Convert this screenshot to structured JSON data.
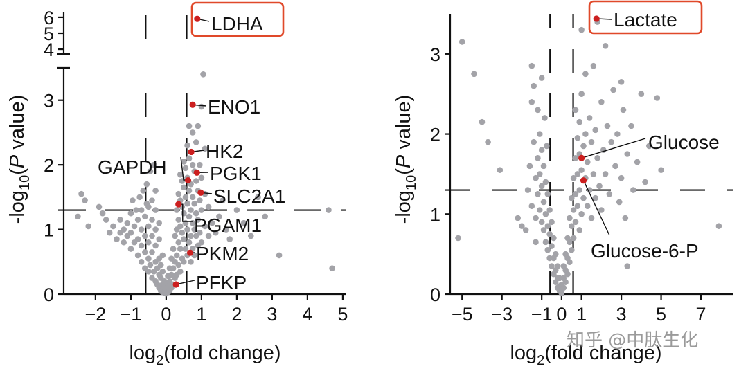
{
  "figure": {
    "watermark": "知乎 @中肽生化"
  },
  "chart_data": [
    {
      "type": "scatter",
      "panel": "left",
      "title": "",
      "xlabel": {
        "prefix": "log",
        "sub": "2",
        "suffix": "(fold change)"
      },
      "ylabel": {
        "prefix": "-log",
        "sub": "10",
        "mid": "(",
        "italic": "P",
        "suffix": " value)"
      },
      "xlim": [
        -2.9,
        5.1
      ],
      "ylim_lower": [
        0,
        3.5
      ],
      "ylim_upper": [
        3.7,
        6.3
      ],
      "axis_break": true,
      "xticks": [
        -2,
        -1,
        0,
        1,
        2,
        3,
        4,
        5
      ],
      "xtick_labels": [
        "−2",
        "−1",
        "0",
        "1",
        "2",
        "3",
        "4",
        "5"
      ],
      "yticks_lower": [
        0,
        1,
        2,
        3
      ],
      "yticks_upper": [
        4,
        5,
        6
      ],
      "ytick_labels_lower": [
        "0",
        "1",
        "2",
        "3"
      ],
      "ytick_labels_upper": [
        "4",
        "5",
        "6"
      ],
      "thresholds": {
        "fold_change": [
          -0.58,
          0.58
        ],
        "p_value": 1.3
      },
      "point_colors": {
        "background": "#a3a3a8",
        "highlight": "#cc1f1f",
        "box": "#e0492a"
      },
      "background_points": [
        [
          -2.5,
          1.2
        ],
        [
          -2.4,
          1.55
        ],
        [
          -2.3,
          1.45
        ],
        [
          -2.2,
          1.05
        ],
        [
          -1.9,
          1.35
        ],
        [
          -1.8,
          1.25
        ],
        [
          -1.7,
          1.15
        ],
        [
          -1.6,
          0.95
        ],
        [
          -1.5,
          1.05
        ],
        [
          -1.4,
          0.85
        ],
        [
          -1.3,
          0.95
        ],
        [
          -1.3,
          1.15
        ],
        [
          -1.2,
          0.8
        ],
        [
          -1.2,
          1.0
        ],
        [
          -1.1,
          0.9
        ],
        [
          -1.1,
          1.1
        ],
        [
          -1.0,
          0.7
        ],
        [
          -1.0,
          0.95
        ],
        [
          -1.0,
          1.25
        ],
        [
          -0.95,
          1.45
        ],
        [
          -0.9,
          0.8
        ],
        [
          -0.9,
          1.05
        ],
        [
          -0.85,
          1.3
        ],
        [
          -0.8,
          0.6
        ],
        [
          -0.8,
          0.85
        ],
        [
          -0.8,
          1.15
        ],
        [
          -0.75,
          1.5
        ],
        [
          -0.7,
          0.5
        ],
        [
          -0.7,
          0.75
        ],
        [
          -0.7,
          1.0
        ],
        [
          -0.7,
          1.3
        ],
        [
          -0.65,
          1.6
        ],
        [
          -0.6,
          0.4
        ],
        [
          -0.6,
          0.65
        ],
        [
          -0.6,
          0.9
        ],
        [
          -0.6,
          1.2
        ],
        [
          -0.55,
          1.4
        ],
        [
          -0.55,
          1.7
        ],
        [
          -0.5,
          0.35
        ],
        [
          -0.5,
          0.55
        ],
        [
          -0.5,
          0.8
        ],
        [
          -0.5,
          1.05
        ],
        [
          -0.5,
          1.35
        ],
        [
          -0.45,
          1.9
        ],
        [
          -0.45,
          0.45
        ],
        [
          -0.4,
          0.25
        ],
        [
          -0.4,
          0.65
        ],
        [
          -0.4,
          0.9
        ],
        [
          -0.4,
          1.15
        ],
        [
          -0.4,
          1.45
        ],
        [
          -0.35,
          2.0
        ],
        [
          -0.35,
          0.35
        ],
        [
          -0.3,
          0.2
        ],
        [
          -0.3,
          0.5
        ],
        [
          -0.3,
          0.75
        ],
        [
          -0.3,
          1.0
        ],
        [
          -0.3,
          1.3
        ],
        [
          -0.3,
          1.6
        ],
        [
          -0.25,
          0.15
        ],
        [
          -0.25,
          0.4
        ],
        [
          -0.2,
          0.1
        ],
        [
          -0.2,
          0.3
        ],
        [
          -0.2,
          0.55
        ],
        [
          -0.2,
          0.85
        ],
        [
          -0.2,
          1.1
        ],
        [
          -0.15,
          0.05
        ],
        [
          -0.15,
          0.25
        ],
        [
          -0.15,
          0.45
        ],
        [
          -0.1,
          0.03
        ],
        [
          -0.1,
          0.15
        ],
        [
          -0.1,
          0.35
        ],
        [
          -0.1,
          0.6
        ],
        [
          -0.05,
          0.02
        ],
        [
          -0.05,
          0.1
        ],
        [
          -0.05,
          0.2
        ],
        [
          0.0,
          0.01
        ],
        [
          0.0,
          0.08
        ],
        [
          0.0,
          0.18
        ],
        [
          0.05,
          0.03
        ],
        [
          0.05,
          0.12
        ],
        [
          0.05,
          0.28
        ],
        [
          0.1,
          0.05
        ],
        [
          0.1,
          0.2
        ],
        [
          0.1,
          0.4
        ],
        [
          0.15,
          0.1
        ],
        [
          0.15,
          0.3
        ],
        [
          0.15,
          0.55
        ],
        [
          0.2,
          0.15
        ],
        [
          0.2,
          0.4
        ],
        [
          0.2,
          0.7
        ],
        [
          0.25,
          0.25
        ],
        [
          0.25,
          0.5
        ],
        [
          0.25,
          0.9
        ],
        [
          0.3,
          0.3
        ],
        [
          0.3,
          0.6
        ],
        [
          0.3,
          1.0
        ],
        [
          0.3,
          1.3
        ],
        [
          0.35,
          0.45
        ],
        [
          0.35,
          0.8
        ],
        [
          0.35,
          1.15
        ],
        [
          0.35,
          1.55
        ],
        [
          0.4,
          0.35
        ],
        [
          0.4,
          0.7
        ],
        [
          0.4,
          1.05
        ],
        [
          0.4,
          1.45
        ],
        [
          0.4,
          1.85
        ],
        [
          0.45,
          0.55
        ],
        [
          0.45,
          0.95
        ],
        [
          0.45,
          1.35
        ],
        [
          0.45,
          1.75
        ],
        [
          0.5,
          0.5
        ],
        [
          0.5,
          0.85
        ],
        [
          0.5,
          1.25
        ],
        [
          0.5,
          1.65
        ],
        [
          0.5,
          2.05
        ],
        [
          0.55,
          0.7
        ],
        [
          0.55,
          1.1
        ],
        [
          0.55,
          1.5
        ],
        [
          0.55,
          1.95
        ],
        [
          0.6,
          0.6
        ],
        [
          0.6,
          1.0
        ],
        [
          0.6,
          1.4
        ],
        [
          0.6,
          1.8
        ],
        [
          0.6,
          2.3
        ],
        [
          0.65,
          0.8
        ],
        [
          0.65,
          1.2
        ],
        [
          0.65,
          1.6
        ],
        [
          0.65,
          2.1
        ],
        [
          0.65,
          2.6
        ],
        [
          0.7,
          0.5
        ],
        [
          0.7,
          0.9
        ],
        [
          0.7,
          1.3
        ],
        [
          0.7,
          1.7
        ],
        [
          0.7,
          2.2
        ],
        [
          0.75,
          0.7
        ],
        [
          0.75,
          1.1
        ],
        [
          0.75,
          1.5
        ],
        [
          0.75,
          2.0
        ],
        [
          0.75,
          2.5
        ],
        [
          0.8,
          0.6
        ],
        [
          0.8,
          1.0
        ],
        [
          0.8,
          1.4
        ],
        [
          0.8,
          1.9
        ],
        [
          0.85,
          0.9
        ],
        [
          0.85,
          1.25
        ],
        [
          0.85,
          1.75
        ],
        [
          0.85,
          2.35
        ],
        [
          0.9,
          0.75
        ],
        [
          0.9,
          1.15
        ],
        [
          0.9,
          1.6
        ],
        [
          0.9,
          2.6
        ],
        [
          0.95,
          0.95
        ],
        [
          0.95,
          1.45
        ],
        [
          0.95,
          2.0
        ],
        [
          1.0,
          0.8
        ],
        [
          1.0,
          1.3
        ],
        [
          1.0,
          1.8
        ],
        [
          1.0,
          2.9
        ],
        [
          1.05,
          3.4
        ],
        [
          1.1,
          1.05
        ],
        [
          1.1,
          1.55
        ],
        [
          1.1,
          2.25
        ],
        [
          1.2,
          0.9
        ],
        [
          1.2,
          1.35
        ],
        [
          1.3,
          1.1
        ],
        [
          1.4,
          0.95
        ],
        [
          1.5,
          1.2
        ],
        [
          1.6,
          1.45
        ],
        [
          1.7,
          1.0
        ],
        [
          1.8,
          0.85
        ],
        [
          2.0,
          1.3
        ],
        [
          2.2,
          1.1
        ],
        [
          2.4,
          0.9
        ],
        [
          2.6,
          1.5
        ],
        [
          2.8,
          1.2
        ],
        [
          3.2,
          0.6
        ],
        [
          4.6,
          1.3
        ],
        [
          4.7,
          0.4
        ]
      ],
      "highlights": [
        {
          "gene": "LDHA",
          "x": 0.88,
          "y": 5.9,
          "boxed": true
        },
        {
          "gene": "ENO1",
          "x": 0.75,
          "y": 2.93
        },
        {
          "gene": "HK2",
          "x": 0.71,
          "y": 2.2
        },
        {
          "gene": "GAPDH",
          "x": 0.62,
          "y": 1.76
        },
        {
          "gene": "PGK1",
          "x": 0.87,
          "y": 1.88
        },
        {
          "gene": "SLC2A1",
          "x": 0.98,
          "y": 1.57
        },
        {
          "gene": "PGAM1",
          "x": 0.35,
          "y": 1.39
        },
        {
          "gene": "PKM2",
          "x": 0.68,
          "y": 0.64
        },
        {
          "gene": "PFKP",
          "x": 0.28,
          "y": 0.15
        }
      ]
    },
    {
      "type": "scatter",
      "panel": "right",
      "title": "",
      "xlabel": {
        "prefix": "log",
        "sub": "2",
        "suffix": "(fold change)"
      },
      "ylabel": {
        "prefix": "-log",
        "sub": "10",
        "mid": "(",
        "italic": "P",
        "suffix": " value)"
      },
      "xlim": [
        -5.6,
        8.6
      ],
      "ylim": [
        0,
        3.5
      ],
      "axis_break": false,
      "xticks": [
        -5,
        -3,
        -1,
        0,
        1,
        3,
        5,
        7
      ],
      "xtick_labels": [
        "−5",
        "−3",
        "−1",
        "0",
        "1",
        "3",
        "5",
        "7"
      ],
      "yticks": [
        0,
        1,
        2,
        3
      ],
      "ytick_labels": [
        "0",
        "1",
        "2",
        "3"
      ],
      "thresholds": {
        "fold_change": [
          -0.58,
          0.58
        ],
        "p_value": 1.3
      },
      "point_colors": {
        "background": "#a3a3a8",
        "highlight": "#cc1f1f",
        "box": "#e0492a"
      },
      "background_points": [
        [
          -5.0,
          3.15
        ],
        [
          -4.4,
          2.75
        ],
        [
          -4.0,
          2.15
        ],
        [
          -3.7,
          1.9
        ],
        [
          -3.1,
          1.55
        ],
        [
          -5.2,
          0.7
        ],
        [
          -2.2,
          0.95
        ],
        [
          -2.0,
          0.85
        ],
        [
          -1.8,
          0.8
        ],
        [
          -1.7,
          1.3
        ],
        [
          -1.6,
          1.6
        ],
        [
          -1.5,
          2.85
        ],
        [
          -1.5,
          2.4
        ],
        [
          -1.5,
          1.1
        ],
        [
          -1.4,
          2.6
        ],
        [
          -1.4,
          1.9
        ],
        [
          -1.3,
          1.45
        ],
        [
          -1.3,
          0.95
        ],
        [
          -1.3,
          0.65
        ],
        [
          -1.2,
          2.3
        ],
        [
          -1.2,
          1.7
        ],
        [
          -1.2,
          1.25
        ],
        [
          -1.1,
          2.0
        ],
        [
          -1.1,
          1.5
        ],
        [
          -1.1,
          1.05
        ],
        [
          -1.0,
          2.7
        ],
        [
          -1.0,
          1.8
        ],
        [
          -1.0,
          1.35
        ],
        [
          -1.0,
          0.9
        ],
        [
          -0.9,
          1.6
        ],
        [
          -0.9,
          1.15
        ],
        [
          -0.9,
          0.8
        ],
        [
          -0.85,
          2.2
        ],
        [
          -0.8,
          1.4
        ],
        [
          -0.8,
          1.0
        ],
        [
          -0.8,
          0.65
        ],
        [
          -0.75,
          1.85
        ],
        [
          -0.7,
          1.25
        ],
        [
          -0.7,
          0.85
        ],
        [
          -0.7,
          0.55
        ],
        [
          -0.6,
          1.05
        ],
        [
          -0.6,
          0.75
        ],
        [
          -0.6,
          0.45
        ],
        [
          -0.5,
          0.9
        ],
        [
          -0.5,
          0.6
        ],
        [
          -0.5,
          0.35
        ],
        [
          -0.4,
          0.7
        ],
        [
          -0.4,
          0.45
        ],
        [
          -0.4,
          0.25
        ],
        [
          -0.3,
          0.5
        ],
        [
          -0.3,
          0.3
        ],
        [
          -0.3,
          0.15
        ],
        [
          -0.2,
          0.35
        ],
        [
          -0.2,
          0.2
        ],
        [
          -0.2,
          0.08
        ],
        [
          -0.1,
          0.2
        ],
        [
          -0.1,
          0.1
        ],
        [
          -0.1,
          0.04
        ],
        [
          0.0,
          0.12
        ],
        [
          0.0,
          0.05
        ],
        [
          0.0,
          0.01
        ],
        [
          0.1,
          0.08
        ],
        [
          0.1,
          0.2
        ],
        [
          0.1,
          0.35
        ],
        [
          0.2,
          0.15
        ],
        [
          0.2,
          0.3
        ],
        [
          0.2,
          0.5
        ],
        [
          0.3,
          0.25
        ],
        [
          0.3,
          0.45
        ],
        [
          0.3,
          0.7
        ],
        [
          0.4,
          0.4
        ],
        [
          0.4,
          0.65
        ],
        [
          0.4,
          0.95
        ],
        [
          0.5,
          0.55
        ],
        [
          0.5,
          0.85
        ],
        [
          0.5,
          1.2
        ],
        [
          0.6,
          0.7
        ],
        [
          0.6,
          1.05
        ],
        [
          0.6,
          1.45
        ],
        [
          0.7,
          0.9
        ],
        [
          0.7,
          1.25
        ],
        [
          0.7,
          1.7
        ],
        [
          0.7,
          2.3
        ],
        [
          0.8,
          1.1
        ],
        [
          0.8,
          1.5
        ],
        [
          0.8,
          1.95
        ],
        [
          0.9,
          0.8
        ],
        [
          0.9,
          1.3
        ],
        [
          0.9,
          1.75
        ],
        [
          0.9,
          2.15
        ],
        [
          1.0,
          1.0
        ],
        [
          1.0,
          1.55
        ],
        [
          1.0,
          2.5
        ],
        [
          1.0,
          3.3
        ],
        [
          1.1,
          1.2
        ],
        [
          1.1,
          1.85
        ],
        [
          1.2,
          1.45
        ],
        [
          1.2,
          2.0
        ],
        [
          1.2,
          2.75
        ],
        [
          1.3,
          1.1
        ],
        [
          1.3,
          1.65
        ],
        [
          1.4,
          1.3
        ],
        [
          1.4,
          2.2
        ],
        [
          1.5,
          0.95
        ],
        [
          1.5,
          1.9
        ],
        [
          1.6,
          1.5
        ],
        [
          1.6,
          2.85
        ],
        [
          1.7,
          1.2
        ],
        [
          1.7,
          2.05
        ],
        [
          1.8,
          3.4
        ],
        [
          1.8,
          1.7
        ],
        [
          1.9,
          1.35
        ],
        [
          2.0,
          2.4
        ],
        [
          2.0,
          1.05
        ],
        [
          2.1,
          1.8
        ],
        [
          2.2,
          3.1
        ],
        [
          2.2,
          1.5
        ],
        [
          2.3,
          2.1
        ],
        [
          2.4,
          1.25
        ],
        [
          2.5,
          1.9
        ],
        [
          2.6,
          2.55
        ],
        [
          2.7,
          1.6
        ],
        [
          2.8,
          2.0
        ],
        [
          2.9,
          1.15
        ],
        [
          3.0,
          2.65
        ],
        [
          3.0,
          1.45
        ],
        [
          3.1,
          2.3
        ],
        [
          3.2,
          0.95
        ],
        [
          3.3,
          1.75
        ],
        [
          3.5,
          2.1
        ],
        [
          3.6,
          1.3
        ],
        [
          3.8,
          1.65
        ],
        [
          4.0,
          2.5
        ],
        [
          4.2,
          1.4
        ],
        [
          4.4,
          1.85
        ],
        [
          4.8,
          2.45
        ],
        [
          5.0,
          1.55
        ],
        [
          3.3,
          0.35
        ],
        [
          7.9,
          0.85
        ]
      ],
      "highlights": [
        {
          "gene": "Lactate",
          "x": 1.75,
          "y": 3.44,
          "boxed": true
        },
        {
          "gene": "Glucose",
          "x": 1.0,
          "y": 1.7
        },
        {
          "gene": "Glucose-6-P",
          "x": 1.1,
          "y": 1.42
        }
      ]
    }
  ]
}
